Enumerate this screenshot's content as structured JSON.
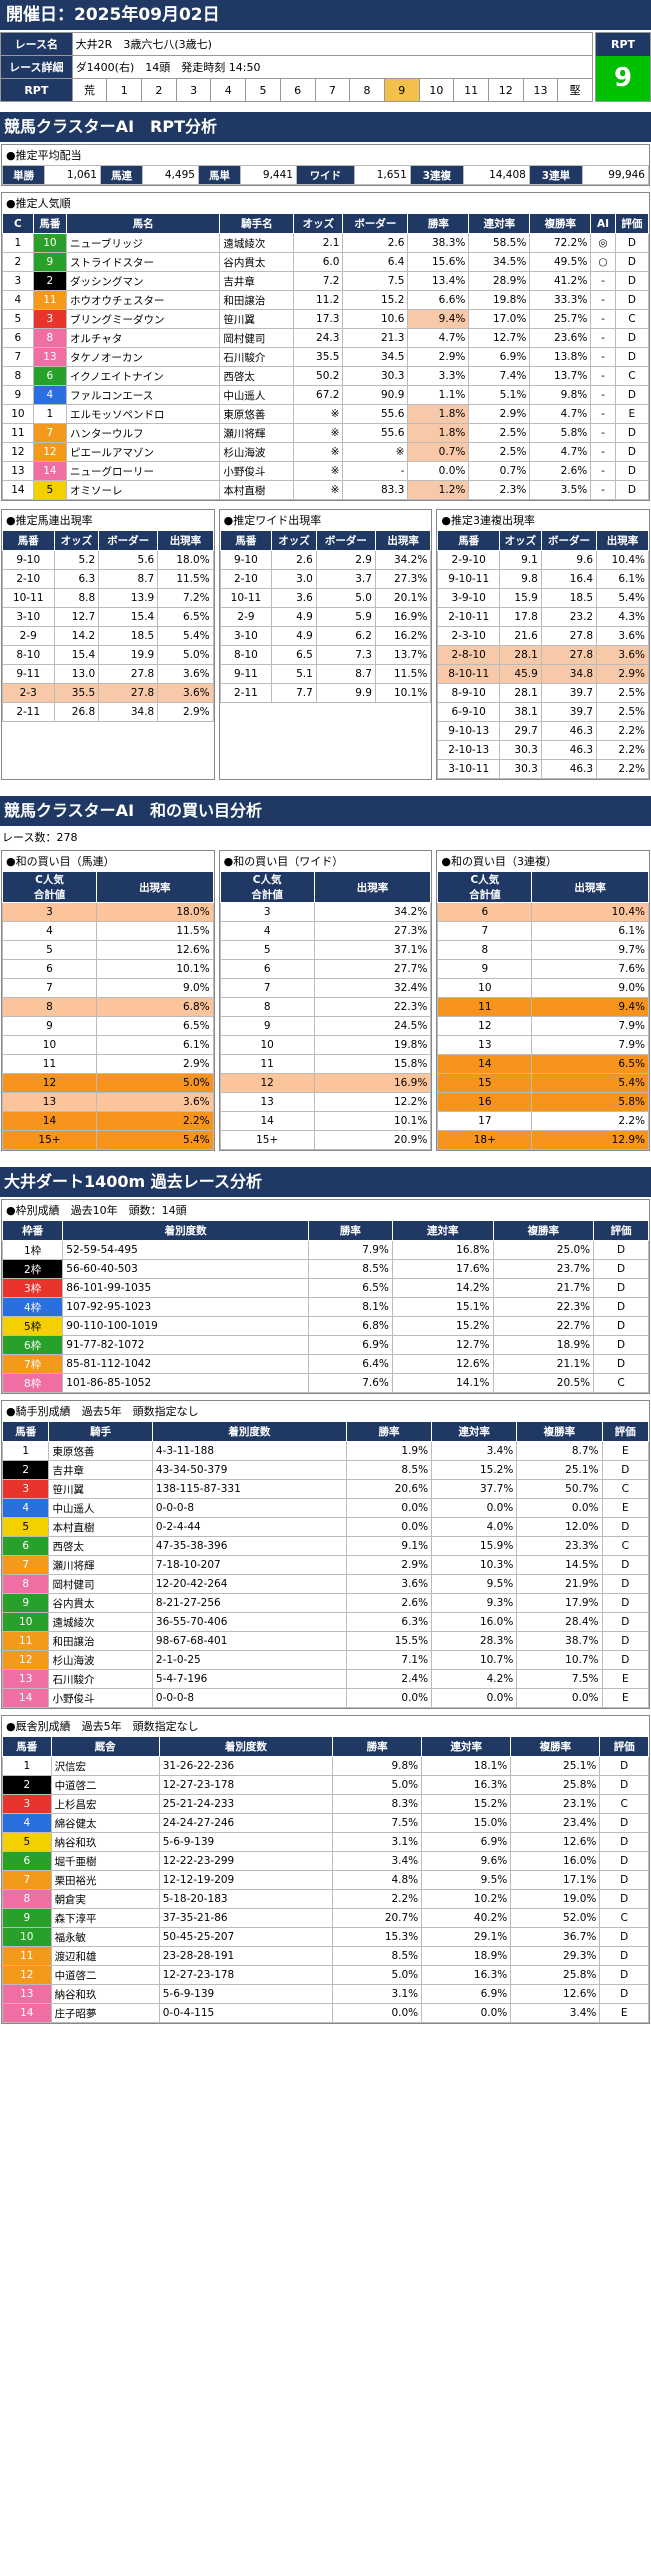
{
  "date_label": "開催日：2025年09月02日",
  "race": {
    "name_label": "レース名",
    "name": "大井2R　3歳六七八(3歳七)",
    "detail_label": "レース詳細",
    "detail": "ダ1400(右)　14頭　発走時刻 14:50",
    "rpt_label": "RPT",
    "horse_nums": [
      "荒",
      "1",
      "2",
      "3",
      "4",
      "5",
      "6",
      "7",
      "8",
      "9",
      "10",
      "11",
      "12",
      "13",
      "堅"
    ],
    "rpt_value": "9"
  },
  "s1_title": "競馬クラスターAI　RPT分析",
  "pay": {
    "title": "●推定平均配当",
    "items": [
      [
        "単勝",
        "1,061"
      ],
      [
        "馬連",
        "4,495"
      ],
      [
        "馬単",
        "9,441"
      ],
      [
        "ワイド",
        "1,651"
      ],
      [
        "3連複",
        "14,408"
      ],
      [
        "3連単",
        "99,946"
      ]
    ]
  },
  "pop": {
    "title": "●推定人気順",
    "headers": [
      "C",
      "馬番",
      "馬名",
      "騎手名",
      "オッズ",
      "ボーダー",
      "勝率",
      "連対率",
      "複勝率",
      "AI",
      "評価"
    ],
    "rows": [
      [
        "1",
        "10",
        "ニューブリッジ",
        "遠城綾次",
        "2.1",
        "2.6",
        "38.3%",
        "58.5%",
        "72.2%",
        "◎",
        "D"
      ],
      [
        "2",
        "9",
        "ストライドスター",
        "谷内貫太",
        "6.0",
        "6.4",
        "15.6%",
        "34.5%",
        "49.5%",
        "○",
        "D"
      ],
      [
        "3",
        "2",
        "ダッシングマン",
        "吉井章",
        "7.2",
        "7.5",
        "13.4%",
        "28.9%",
        "41.2%",
        "-",
        "D"
      ],
      [
        "4",
        "11",
        "ホウオウチェスター",
        "和田譲治",
        "11.2",
        "15.2",
        "6.6%",
        "19.8%",
        "33.3%",
        "-",
        "D"
      ],
      [
        "5",
        "3",
        "ブリングミーダウン",
        "笹川翼",
        "17.3",
        "10.6",
        "9.4%",
        "17.0%",
        "25.7%",
        "-",
        "C"
      ],
      [
        "6",
        "8",
        "オルチャタ",
        "岡村健司",
        "24.3",
        "21.3",
        "4.7%",
        "12.7%",
        "23.6%",
        "-",
        "D"
      ],
      [
        "7",
        "13",
        "タケノオーカン",
        "石川駿介",
        "35.5",
        "34.5",
        "2.9%",
        "6.9%",
        "13.8%",
        "-",
        "D"
      ],
      [
        "8",
        "6",
        "イクノエイトナイン",
        "西啓太",
        "50.2",
        "30.3",
        "3.3%",
        "7.4%",
        "13.7%",
        "-",
        "C"
      ],
      [
        "9",
        "4",
        "ファルコンエース",
        "中山遥人",
        "67.2",
        "90.9",
        "1.1%",
        "5.1%",
        "9.8%",
        "-",
        "D"
      ],
      [
        "10",
        "1",
        "エルモッソペンドロ",
        "東原悠善",
        "※",
        "55.6",
        "1.8%",
        "2.9%",
        "4.7%",
        "-",
        "E"
      ],
      [
        "11",
        "7",
        "ハンターウルフ",
        "瀬川将輝",
        "※",
        "55.6",
        "1.8%",
        "2.5%",
        "5.8%",
        "-",
        "D"
      ],
      [
        "12",
        "12",
        "ピエールアマゾン",
        "杉山海波",
        "※",
        "※",
        "0.7%",
        "2.5%",
        "4.7%",
        "-",
        "D"
      ],
      [
        "13",
        "14",
        "ニューグローリー",
        "小野俊斗",
        "※",
        "-",
        "0.0%",
        "0.7%",
        "2.6%",
        "-",
        "D"
      ],
      [
        "14",
        "5",
        "オミソーレ",
        "本村直樹",
        "※",
        "83.3",
        "1.2%",
        "2.3%",
        "3.5%",
        "-",
        "D"
      ]
    ]
  },
  "umaren": {
    "title": "●推定馬連出現率",
    "headers": [
      "馬番",
      "オッズ",
      "ボーダー",
      "出現率"
    ],
    "rows": [
      [
        "9-10",
        "5.2",
        "5.6",
        "18.0%"
      ],
      [
        "2-10",
        "6.3",
        "8.7",
        "11.5%"
      ],
      [
        "10-11",
        "8.8",
        "13.9",
        "7.2%"
      ],
      [
        "3-10",
        "12.7",
        "15.4",
        "6.5%"
      ],
      [
        "2-9",
        "14.2",
        "18.5",
        "5.4%"
      ],
      [
        "8-10",
        "15.4",
        "19.9",
        "5.0%"
      ],
      [
        "9-11",
        "13.0",
        "27.8",
        "3.6%"
      ],
      [
        "2-3",
        "35.5",
        "27.8",
        "3.6%"
      ],
      [
        "2-11",
        "26.8",
        "34.8",
        "2.9%"
      ]
    ]
  },
  "wide": {
    "title": "●推定ワイド出現率",
    "headers": [
      "馬番",
      "オッズ",
      "ボーダー",
      "出現率"
    ],
    "rows": [
      [
        "9-10",
        "2.6",
        "2.9",
        "34.2%"
      ],
      [
        "2-10",
        "3.0",
        "3.7",
        "27.3%"
      ],
      [
        "10-11",
        "3.6",
        "5.0",
        "20.1%"
      ],
      [
        "2-9",
        "4.9",
        "5.9",
        "16.9%"
      ],
      [
        "3-10",
        "4.9",
        "6.2",
        "16.2%"
      ],
      [
        "8-10",
        "6.5",
        "7.3",
        "13.7%"
      ],
      [
        "9-11",
        "5.1",
        "8.7",
        "11.5%"
      ],
      [
        "2-11",
        "7.7",
        "9.9",
        "10.1%"
      ]
    ]
  },
  "sanfuku": {
    "title": "●推定3連複出現率",
    "headers": [
      "馬番",
      "オッズ",
      "ボーダー",
      "出現率"
    ],
    "rows": [
      [
        "2-9-10",
        "9.1",
        "9.6",
        "10.4%"
      ],
      [
        "9-10-11",
        "9.8",
        "16.4",
        "6.1%"
      ],
      [
        "3-9-10",
        "15.9",
        "18.5",
        "5.4%"
      ],
      [
        "2-10-11",
        "17.8",
        "23.2",
        "4.3%"
      ],
      [
        "2-3-10",
        "21.6",
        "27.8",
        "3.6%"
      ],
      [
        "2-8-10",
        "28.1",
        "27.8",
        "3.6%"
      ],
      [
        "8-10-11",
        "45.9",
        "34.8",
        "2.9%"
      ],
      [
        "8-9-10",
        "28.1",
        "39.7",
        "2.5%"
      ],
      [
        "6-9-10",
        "38.1",
        "39.7",
        "2.5%"
      ],
      [
        "9-10-13",
        "29.7",
        "46.3",
        "2.2%"
      ],
      [
        "2-10-13",
        "30.3",
        "46.3",
        "2.2%"
      ],
      [
        "3-10-11",
        "30.3",
        "46.3",
        "2.2%"
      ]
    ]
  },
  "s2_title": "競馬クラスターAI　和の買い目分析",
  "race_count": "レース数：278",
  "wa": [
    {
      "title": "●和の買い目（馬連）",
      "headers": [
        "C人気\n合計値",
        "出現率"
      ],
      "rows": [
        [
          "3",
          "18.0%"
        ],
        [
          "4",
          "11.5%"
        ],
        [
          "5",
          "12.6%"
        ],
        [
          "6",
          "10.1%"
        ],
        [
          "7",
          "9.0%"
        ],
        [
          "8",
          "6.8%"
        ],
        [
          "9",
          "6.5%"
        ],
        [
          "10",
          "6.1%"
        ],
        [
          "11",
          "2.9%"
        ],
        [
          "12",
          "5.0%"
        ],
        [
          "13",
          "3.6%"
        ],
        [
          "14",
          "2.2%"
        ],
        [
          "15+",
          "5.4%"
        ]
      ]
    },
    {
      "title": "●和の買い目（ワイド）",
      "headers": [
        "C人気\n合計値",
        "出現率"
      ],
      "rows": [
        [
          "3",
          "34.2%"
        ],
        [
          "4",
          "27.3%"
        ],
        [
          "5",
          "37.1%"
        ],
        [
          "6",
          "27.7%"
        ],
        [
          "7",
          "32.4%"
        ],
        [
          "8",
          "22.3%"
        ],
        [
          "9",
          "24.5%"
        ],
        [
          "10",
          "19.8%"
        ],
        [
          "11",
          "15.8%"
        ],
        [
          "12",
          "16.9%"
        ],
        [
          "13",
          "12.2%"
        ],
        [
          "14",
          "10.1%"
        ],
        [
          "15+",
          "20.9%"
        ]
      ]
    },
    {
      "title": "●和の買い目（3連複）",
      "headers": [
        "C人気\n合計値",
        "出現率"
      ],
      "rows": [
        [
          "6",
          "10.4%"
        ],
        [
          "7",
          "6.1%"
        ],
        [
          "8",
          "9.7%"
        ],
        [
          "9",
          "7.6%"
        ],
        [
          "10",
          "9.0%"
        ],
        [
          "11",
          "9.4%"
        ],
        [
          "12",
          "7.9%"
        ],
        [
          "13",
          "7.9%"
        ],
        [
          "14",
          "6.5%"
        ],
        [
          "15",
          "5.4%"
        ],
        [
          "16",
          "5.8%"
        ],
        [
          "17",
          "2.2%"
        ],
        [
          "18+",
          "12.9%"
        ]
      ]
    }
  ],
  "s3_title": "大井ダート1400m 過去レース分析",
  "waku": {
    "title": "●枠別成績　過去10年　頭数：14頭",
    "headers": [
      "枠番",
      "着別度数",
      "勝率",
      "連対率",
      "複勝率",
      "評価"
    ],
    "rows": [
      [
        "1枠",
        "52-59-54-495",
        "7.9%",
        "16.8%",
        "25.0%",
        "D"
      ],
      [
        "2枠",
        "56-60-40-503",
        "8.5%",
        "17.6%",
        "23.7%",
        "D"
      ],
      [
        "3枠",
        "86-101-99-1035",
        "6.5%",
        "14.2%",
        "21.7%",
        "D"
      ],
      [
        "4枠",
        "107-92-95-1023",
        "8.1%",
        "15.1%",
        "22.3%",
        "D"
      ],
      [
        "5枠",
        "90-110-100-1019",
        "6.8%",
        "15.2%",
        "22.7%",
        "D"
      ],
      [
        "6枠",
        "91-77-82-1072",
        "6.9%",
        "12.7%",
        "18.9%",
        "D"
      ],
      [
        "7枠",
        "85-81-112-1042",
        "6.4%",
        "12.6%",
        "21.1%",
        "D"
      ],
      [
        "8枠",
        "101-86-85-1052",
        "7.6%",
        "14.1%",
        "20.5%",
        "C"
      ]
    ]
  },
  "jockey": {
    "title": "●騎手別成績　過去5年　頭数指定なし",
    "headers": [
      "馬番",
      "騎手",
      "着別度数",
      "勝率",
      "連対率",
      "複勝率",
      "評価"
    ],
    "rows": [
      [
        "1",
        "東原悠善",
        "4-3-11-188",
        "1.9%",
        "3.4%",
        "8.7%",
        "E"
      ],
      [
        "2",
        "吉井章",
        "43-34-50-379",
        "8.5%",
        "15.2%",
        "25.1%",
        "D"
      ],
      [
        "3",
        "笹川翼",
        "138-115-87-331",
        "20.6%",
        "37.7%",
        "50.7%",
        "C"
      ],
      [
        "4",
        "中山遥人",
        "0-0-0-8",
        "0.0%",
        "0.0%",
        "0.0%",
        "E"
      ],
      [
        "5",
        "本村直樹",
        "0-2-4-44",
        "0.0%",
        "4.0%",
        "12.0%",
        "D"
      ],
      [
        "6",
        "西啓太",
        "47-35-38-396",
        "9.1%",
        "15.9%",
        "23.3%",
        "C"
      ],
      [
        "7",
        "瀬川将輝",
        "7-18-10-207",
        "2.9%",
        "10.3%",
        "14.5%",
        "D"
      ],
      [
        "8",
        "岡村健司",
        "12-20-42-264",
        "3.6%",
        "9.5%",
        "21.9%",
        "D"
      ],
      [
        "9",
        "谷内貫太",
        "8-21-27-256",
        "2.6%",
        "9.3%",
        "17.9%",
        "D"
      ],
      [
        "10",
        "遠城綾次",
        "36-55-70-406",
        "6.3%",
        "16.0%",
        "28.4%",
        "D"
      ],
      [
        "11",
        "和田譲治",
        "98-67-68-401",
        "15.5%",
        "28.3%",
        "38.7%",
        "D"
      ],
      [
        "12",
        "杉山海波",
        "2-1-0-25",
        "7.1%",
        "10.7%",
        "10.7%",
        "D"
      ],
      [
        "13",
        "石川駿介",
        "5-4-7-196",
        "2.4%",
        "4.2%",
        "7.5%",
        "E"
      ],
      [
        "14",
        "小野俊斗",
        "0-0-0-8",
        "0.0%",
        "0.0%",
        "0.0%",
        "E"
      ]
    ]
  },
  "trainer": {
    "title": "●厩舎別成績　過去5年　頭数指定なし",
    "headers": [
      "馬番",
      "厩舎",
      "着別度数",
      "勝率",
      "連対率",
      "複勝率",
      "評価"
    ],
    "rows": [
      [
        "1",
        "沢信宏",
        "31-26-22-236",
        "9.8%",
        "18.1%",
        "25.1%",
        "D"
      ],
      [
        "2",
        "中道啓二",
        "12-27-23-178",
        "5.0%",
        "16.3%",
        "25.8%",
        "D"
      ],
      [
        "3",
        "上杉昌宏",
        "25-21-24-233",
        "8.3%",
        "15.2%",
        "23.1%",
        "C"
      ],
      [
        "4",
        "綿谷健太",
        "24-24-27-246",
        "7.5%",
        "15.0%",
        "23.4%",
        "D"
      ],
      [
        "5",
        "納谷和玖",
        "5-6-9-139",
        "3.1%",
        "6.9%",
        "12.6%",
        "D"
      ],
      [
        "6",
        "堀千亜樹",
        "12-22-23-299",
        "3.4%",
        "9.6%",
        "16.0%",
        "D"
      ],
      [
        "7",
        "栗田裕光",
        "12-12-19-209",
        "4.8%",
        "9.5%",
        "17.1%",
        "D"
      ],
      [
        "8",
        "朝倉実",
        "5-18-20-183",
        "2.2%",
        "10.2%",
        "19.0%",
        "D"
      ],
      [
        "9",
        "森下淳平",
        "37-35-21-86",
        "20.7%",
        "40.2%",
        "52.0%",
        "C"
      ],
      [
        "10",
        "福永敏",
        "50-45-25-207",
        "15.3%",
        "29.1%",
        "36.7%",
        "D"
      ],
      [
        "11",
        "渡辺和雄",
        "23-28-28-191",
        "8.5%",
        "18.9%",
        "29.3%",
        "D"
      ],
      [
        "12",
        "中道啓二",
        "12-27-23-178",
        "5.0%",
        "16.3%",
        "25.8%",
        "D"
      ],
      [
        "13",
        "納谷和玖",
        "5-6-9-139",
        "3.1%",
        "6.9%",
        "12.6%",
        "D"
      ],
      [
        "14",
        "庄子昭夢",
        "0-0-4-115",
        "0.0%",
        "0.0%",
        "3.4%",
        "E"
      ]
    ]
  }
}
